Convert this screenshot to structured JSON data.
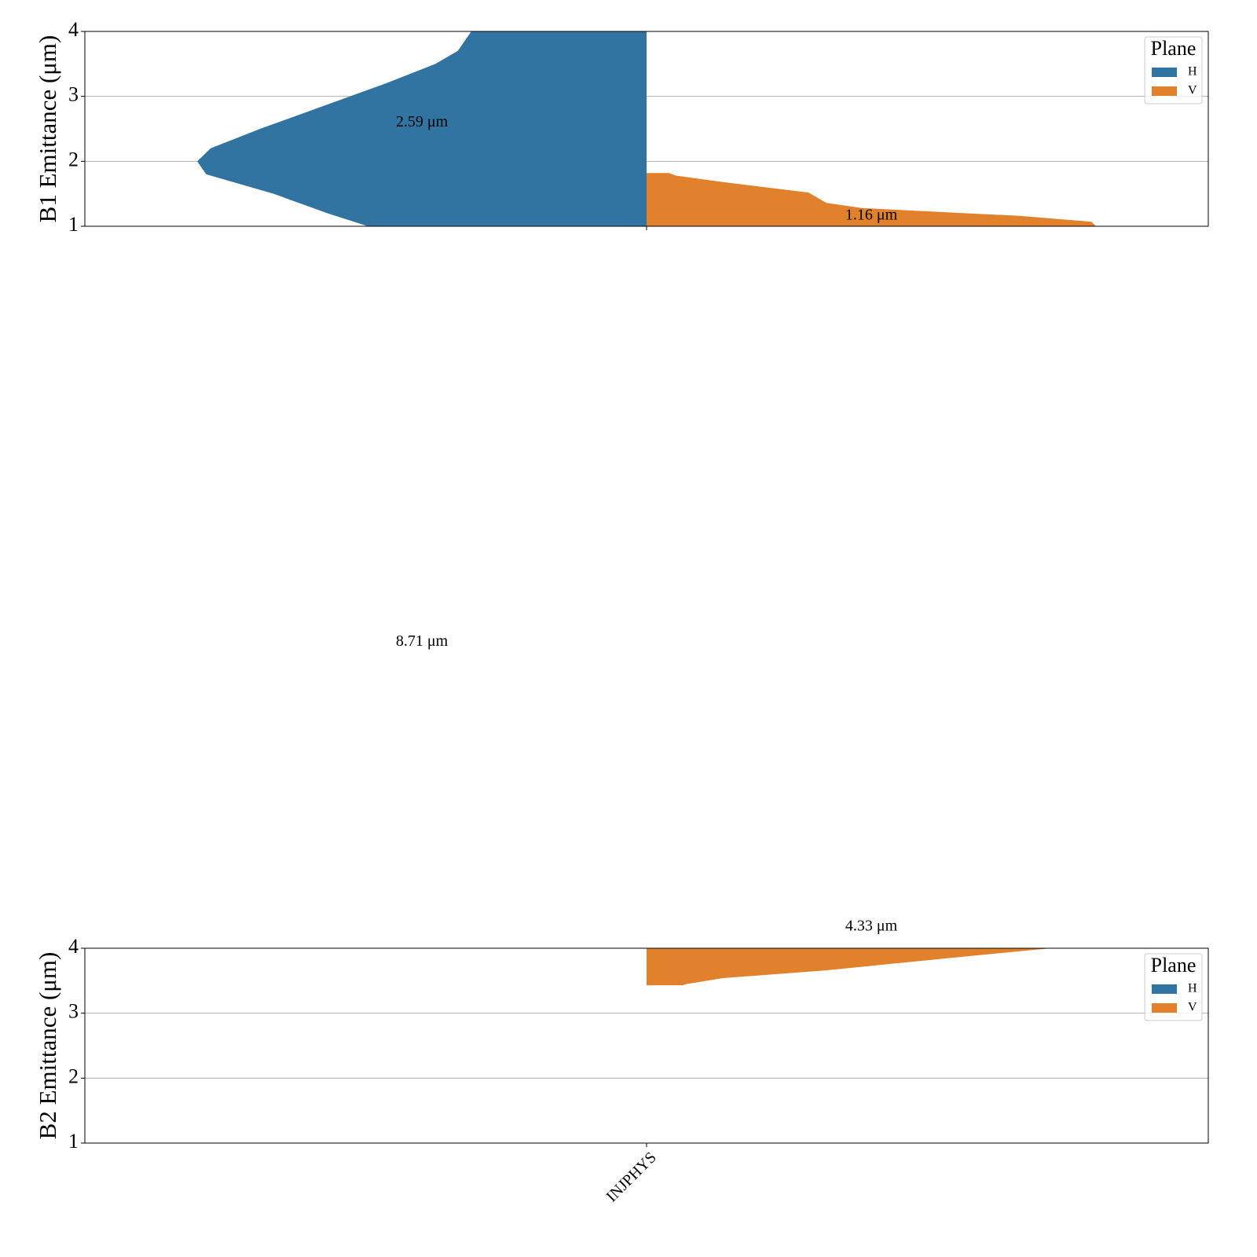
{
  "chart_data": [
    {
      "type": "violin",
      "ylabel": "B1 Emittance (μm)",
      "ylim": [
        1,
        4
      ],
      "yticks": [
        1,
        2,
        3,
        4
      ],
      "grid": true,
      "categories": [
        null
      ],
      "legend_title": "Plane",
      "legend_loc": "upper right",
      "series": [
        {
          "name": "H",
          "color": "#3274a1",
          "median": 2.59,
          "median_label": "2.59 μm",
          "profile": {
            "y": [
              4.0,
              3.7,
              3.5,
              3.2,
              3.0,
              2.5,
              2.2,
              2.0,
              1.8,
              1.5,
              1.2,
              1.0
            ],
            "width": [
              0.39,
              0.42,
              0.47,
              0.58,
              0.66,
              0.86,
              0.97,
              1.0,
              0.98,
              0.83,
              0.71,
              0.62
            ]
          }
        },
        {
          "name": "V",
          "color": "#e1812c",
          "median": 1.16,
          "median_label": "1.16 μm",
          "profile": {
            "y": [
              1.82,
              1.82,
              1.78,
              1.68,
              1.52,
              1.36,
              1.28,
              1.16,
              1.07,
              1.0
            ],
            "width": [
              0,
              0.05,
              0.065,
              0.17,
              0.36,
              0.4,
              0.48,
              0.83,
              0.99,
              1.0
            ]
          }
        }
      ]
    },
    {
      "type": "violin",
      "ylabel": "B2 Emittance (μm)",
      "ylim": [
        1,
        4
      ],
      "yticks": [
        1,
        2,
        3,
        4
      ],
      "grid": true,
      "categories": [
        "INJPHYS"
      ],
      "legend_title": "Plane",
      "legend_loc": "upper right",
      "series": [
        {
          "name": "H",
          "color": "#3274a1",
          "median": 8.71,
          "median_label": "8.71 μm",
          "profile": {
            "y": [],
            "width": []
          }
        },
        {
          "name": "V",
          "color": "#e1812c",
          "median": 4.33,
          "median_label": "4.33 μm",
          "profile": {
            "y": [
              4.0,
              3.84,
              3.66,
              3.54,
              3.45,
              3.43,
              3.43
            ],
            "width": [
              0.9,
              0.66,
              0.4,
              0.17,
              0.09,
              0.08,
              0
            ]
          }
        }
      ]
    }
  ]
}
